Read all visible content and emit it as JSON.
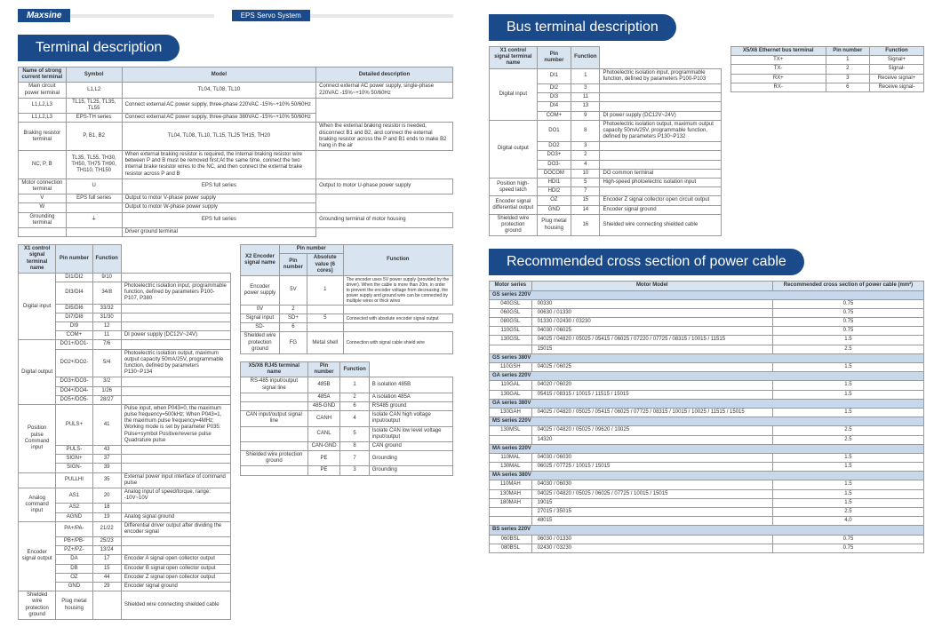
{
  "brand": "Maxsine",
  "subtitle": "EPS Servo System",
  "sections": {
    "terminal": "Terminal description",
    "bus": "Bus terminal description",
    "cross": "Recommended cross section of power cable"
  },
  "t1": {
    "headers": [
      "Name of strong current terminal",
      "Symbol",
      "Model",
      "Detailed description"
    ],
    "rows": [
      [
        "Main circuit power terminal",
        "L1,L2",
        "TL04, TL08, TL10",
        "Connect external AC power supply, single-phase 220VAC -15%~+10% 50/60Hz"
      ],
      [
        "",
        "L1,L2,L3",
        "TL15, TL25, TL35, TL55",
        "Connect external AC power supply, three-phase 220VAC -15%~+10% 50/60Hz"
      ],
      [
        "",
        "L1,L2,L3",
        "EPS-TH series",
        "Connect external AC power supply, three-phase 380VAC -15%~+10% 50/60Hz"
      ],
      [
        "Braking resistor terminal",
        "P, B1, B2",
        "TL04, TL08, TL10, TL15, TL25 TH15, TH20",
        "When the external braking resistor is needed, disconnect B1 and B2, and connect the external braking resistor across the P and B1 ends to make B2 hang in the air"
      ],
      [
        "",
        "NC, P, B",
        "TL35, TL55, TH30, TH50, TH75 TH90, TH110, TH150",
        "When external braking resistor is required, the internal braking resistor wire between P and B must be removed first;At the same time, connect the two internal brake resistor wires to the NC, and then connect the external brake resistor across P and B"
      ],
      [
        "Motor connection terminal",
        "U",
        "EPS full series",
        "Output to motor U-phase power supply"
      ],
      [
        "",
        "V",
        "EPS full series",
        "Output to motor V-phase power supply"
      ],
      [
        "",
        "W",
        "",
        "Output to motor W-phase power supply"
      ],
      [
        "Grounding terminal",
        "⏚",
        "EPS full series",
        "Grounding terminal of motor housing"
      ],
      [
        "",
        "",
        "",
        "Driver ground terminal"
      ]
    ]
  },
  "t2": {
    "headers": [
      "X1 control signal terminal name",
      "Pin number",
      "Function"
    ],
    "groups": [
      {
        "name": "Digital input",
        "rows": [
          [
            "DI1/DI2",
            "9/10",
            ""
          ],
          [
            "DI3/DI4",
            "34/8",
            "Photoelectric isolation input, programmable function, defined by parameters P100-P107, P380"
          ],
          [
            "DI5/DI6",
            "33/32",
            ""
          ],
          [
            "DI7/DI8",
            "31/30",
            ""
          ],
          [
            "DI9",
            "12",
            ""
          ],
          [
            "COM+",
            "11",
            "DI power supply (DC12V~24V)"
          ]
        ]
      },
      {
        "name": "Digital output",
        "rows": [
          [
            "DO1+/DO1-",
            "7/6",
            ""
          ],
          [
            "DO2+/DO2-",
            "5/4",
            "Photoelectric isolation output, maximum output capacity 50mA/25V, programmable function, defined by parameters P130~P134"
          ],
          [
            "DO3+/DO3-",
            "3/2",
            ""
          ],
          [
            "DO4+/DO4-",
            "1/26",
            ""
          ],
          [
            "DO5+/DO5-",
            "28/27",
            ""
          ]
        ]
      },
      {
        "name": "Position pulse Command input",
        "rows": [
          [
            "PULS+",
            "41",
            "Pulse input, when P043=0, the maximum pulse frequency=500kHz; When P043=1, the maximum pulse frequency=4MHz; Working mode is set by parameter P035: Pulse+symbol Positive/reverse pulse Quadrature pulse"
          ],
          [
            "PULS-",
            "43",
            ""
          ],
          [
            "SIGN+",
            "37",
            ""
          ],
          [
            "SIGN-",
            "39",
            ""
          ]
        ]
      },
      {
        "name": "",
        "rows": [
          [
            "PULLHI",
            "35",
            "External power input interface of command pulse"
          ]
        ]
      },
      {
        "name": "Analog command input",
        "rows": [
          [
            "AS1",
            "20",
            "Analog input of speed/torque, range: -10V~10V"
          ],
          [
            "AS2",
            "18",
            ""
          ],
          [
            "AGND",
            "19",
            "Analog signal ground"
          ]
        ]
      },
      {
        "name": "Encoder signal output",
        "rows": [
          [
            "PA+/PA-",
            "21/22",
            "Differential driver output after dividing the encoder signal"
          ],
          [
            "PB+/PB-",
            "25/23",
            ""
          ],
          [
            "PZ+/PZ-",
            "13/24",
            ""
          ],
          [
            "DA",
            "17",
            "Encoder A signal open collector output"
          ],
          [
            "DB",
            "15",
            "Encoder B signal open collector output"
          ],
          [
            "OZ",
            "44",
            "Encoder Z signal open collector output"
          ],
          [
            "GND",
            "29",
            "Encoder signal ground"
          ]
        ]
      },
      {
        "name": "Shielded wire protection ground",
        "rows": [
          [
            "Plug metal housing",
            "",
            "Shielded wire connecting shielded cable"
          ]
        ]
      }
    ]
  },
  "t3": {
    "headers": [
      "X2 Encoder signal name",
      "Pin number",
      "Absolute value (6 cores)",
      "Function"
    ],
    "rows": [
      [
        "Encoder power supply",
        "5V",
        "1",
        "The encoder uses 5V power supply (provided by the driver). When the cable is more than 20m, in order to prevent the encoder voltage from decreasing, the power supply and ground wire can be connected by multiple wires or thick wires"
      ],
      [
        "",
        "0V",
        "2",
        ""
      ],
      [
        "Signal input",
        "SD+",
        "5",
        "Connected with absolute encoder signal output"
      ],
      [
        "",
        "SD-",
        "6",
        ""
      ],
      [
        "Shielded wire protection ground",
        "FG",
        "Metal shell",
        "Connection with signal cable shield wire"
      ]
    ]
  },
  "t4": {
    "headers": [
      "X5/X6 RJ45 terminal name",
      "Pin number",
      "Function"
    ],
    "rows": [
      [
        "RS-485 input/output signal line",
        "485B",
        "1",
        "B isolation 485B"
      ],
      [
        "",
        "485A",
        "2",
        "A isolation 485A"
      ],
      [
        "",
        "485-GND",
        "6",
        "RS485 ground"
      ],
      [
        "CAN input/output signal line",
        "CANH",
        "4",
        "Isolate CAN high voltage input/output"
      ],
      [
        "",
        "CANL",
        "5",
        "Isolate CAN low level voltage input/output"
      ],
      [
        "",
        "CAN-GND",
        "8",
        "CAN ground"
      ],
      [
        "Shielded wire protection ground",
        "PE",
        "7",
        "Grounding"
      ],
      [
        "",
        "PE",
        "3",
        "Grounding"
      ]
    ]
  },
  "t5": {
    "headers": [
      "X1 control signal terminal name",
      "Pin number",
      "Function"
    ],
    "groups": [
      {
        "name": "Digital input",
        "rows": [
          [
            "DI1",
            "1",
            "Photoelectric isolation input, programmable function, defined by parameters P100-P103"
          ],
          [
            "DI2",
            "3",
            ""
          ],
          [
            "DI3",
            "11",
            ""
          ],
          [
            "DI4",
            "13",
            ""
          ],
          [
            "COM+",
            "9",
            "DI power supply (DC12V~24V)"
          ]
        ]
      },
      {
        "name": "Digital output",
        "rows": [
          [
            "DO1",
            "8",
            "Photoelectric isolation output, maximum output capacity 50mA/25V, programmable function, defined by parameters P130~P132"
          ],
          [
            "DO2",
            "3",
            ""
          ],
          [
            "DO3+",
            "2",
            ""
          ],
          [
            "DO3-",
            "4",
            ""
          ],
          [
            "DOCOM",
            "10",
            "DO common terminal"
          ]
        ]
      },
      {
        "name": "Position high-speed latch",
        "rows": [
          [
            "HDI1",
            "5",
            "High-speed photoelectric isolation input"
          ],
          [
            "HDI2",
            "7",
            ""
          ]
        ]
      },
      {
        "name": "Encoder signal differential output",
        "rows": [
          [
            "OZ",
            "15",
            "Encoder Z signal collector open circuit output"
          ],
          [
            "GND",
            "14",
            "Encoder signal ground"
          ]
        ]
      },
      {
        "name": "Shielded wire protection ground",
        "rows": [
          [
            "Plug metal housing",
            "16",
            "Shielded wire connecting shielded cable"
          ]
        ]
      }
    ]
  },
  "t6": {
    "headers": [
      "X5/X6 Ethernet bus terminal",
      "Pin number",
      "Function"
    ],
    "rows": [
      [
        "TX+",
        "1",
        "Signal+"
      ],
      [
        "TX-",
        "2",
        "Signal-"
      ],
      [
        "RX+",
        "3",
        "Receive signal+"
      ],
      [
        "RX-",
        "6",
        "Receive signal-"
      ]
    ]
  },
  "cross": {
    "headers": [
      "Motor series",
      "Motor Model",
      "Recommended cross section of power cable (mm²)"
    ],
    "groups": [
      {
        "name": "GS series 220V",
        "rows": [
          [
            "040GSL",
            "00330",
            "0.75"
          ],
          [
            "060GSL",
            "00630 / 01330",
            "0.75"
          ],
          [
            "080GSL",
            "01330 / 02430 / 03230",
            "0.75"
          ],
          [
            "110GSL",
            "04030 / 06025",
            "0.75"
          ],
          [
            "130GSL",
            "04025 / 04820 / 05025 / 05415 / 06025 / 07220 / 07725 / 08315 / 10015 / 11515",
            "1.5"
          ],
          [
            "",
            "15015",
            "2.5"
          ]
        ]
      },
      {
        "name": "GS series 380V",
        "rows": [
          [
            "110GSH",
            "04025 / 06025",
            "1.5"
          ]
        ]
      },
      {
        "name": "GA series 220V",
        "rows": [
          [
            "110GAL",
            "04020 / 06020",
            "1.5"
          ],
          [
            "130GAL",
            "05415 / 08315 / 10015 / 11515 / 15015",
            "1.5"
          ]
        ]
      },
      {
        "name": "GA series 380V",
        "rows": [
          [
            "130GAH",
            "04025 / 04820 / 05025 / 05415 / 06025 / 07725 / 08315 / 10015 / 10025 / 11515 / 15015",
            "1.5"
          ]
        ]
      },
      {
        "name": "MS series 220V",
        "rows": [
          [
            "130MSL",
            "04025 / 04820 / 05025 / 09620 / 10025",
            "2.5"
          ],
          [
            "",
            "14320",
            "2.5"
          ]
        ]
      },
      {
        "name": "MA series 220V",
        "rows": [
          [
            "110MAL",
            "04030 / 06030",
            "1.5"
          ],
          [
            "130MAL",
            "06025 / 07725 / 10015 / 15015",
            "1.5"
          ]
        ]
      },
      {
        "name": "MA series 380V",
        "rows": [
          [
            "110MAH",
            "04030 / 06030",
            "1.5"
          ],
          [
            "130MAH",
            "04025 / 04820 / 05025 / 06025 / 07725 / 10015 / 15015",
            "1.5"
          ],
          [
            "180MAH",
            "19015",
            "1.5"
          ],
          [
            "",
            "27015 / 35015",
            "2.5"
          ],
          [
            "",
            "48015",
            "4.0"
          ]
        ]
      },
      {
        "name": "BS series 220V",
        "rows": [
          [
            "060BSL",
            "06030 / 01330",
            "0.75"
          ],
          [
            "080BSL",
            "02430 / 03230",
            "0.75"
          ]
        ]
      }
    ]
  }
}
